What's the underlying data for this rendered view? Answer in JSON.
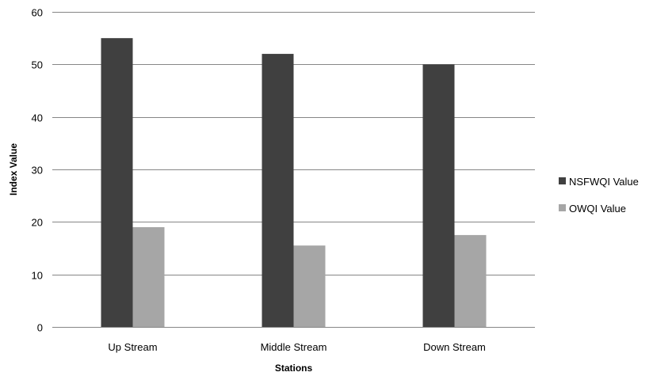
{
  "chart_data": {
    "type": "bar",
    "title": "",
    "xlabel": "Stations",
    "ylabel": "Index Value",
    "categories": [
      "Up Stream",
      "Middle Stream",
      "Down Stream"
    ],
    "series": [
      {
        "name": "NSFWQI Value",
        "values": [
          55,
          52,
          50
        ],
        "color": "#404040"
      },
      {
        "name": "OWQI Value",
        "values": [
          19,
          15.5,
          17.5
        ],
        "color": "#a6a6a6"
      }
    ],
    "ylim": [
      0,
      60
    ],
    "yticks": [
      "0",
      "10",
      "20",
      "30",
      "40",
      "50",
      "60"
    ],
    "grid": true,
    "legend_position": "right"
  }
}
